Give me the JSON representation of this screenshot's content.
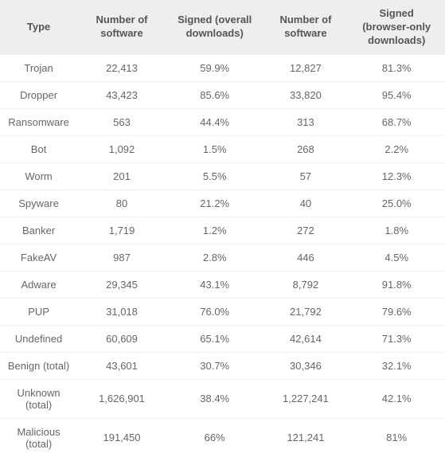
{
  "table": {
    "columns": [
      "Type",
      "Number of software",
      "Signed (overall downloads)",
      "Number of software",
      "Signed (browser-only downloads)"
    ],
    "rows": [
      [
        "Trojan",
        "22,413",
        "59.9%",
        "12,827",
        "81.3%"
      ],
      [
        "Dropper",
        "43,423",
        "85.6%",
        "33,820",
        "95.4%"
      ],
      [
        "Ransomware",
        "563",
        "44.4%",
        "313",
        "68.7%"
      ],
      [
        "Bot",
        "1,092",
        "1.5%",
        "268",
        "2.2%"
      ],
      [
        "Worm",
        "201",
        "5.5%",
        "57",
        "12.3%"
      ],
      [
        "Spyware",
        "80",
        "21.2%",
        "40",
        "25.0%"
      ],
      [
        "Banker",
        "1,719",
        "1.2%",
        "272",
        "1.8%"
      ],
      [
        "FakeAV",
        "987",
        "2.8%",
        "446",
        "4.5%"
      ],
      [
        "Adware",
        "29,345",
        "43.1%",
        "8,792",
        "91.8%"
      ],
      [
        "PUP",
        "31,018",
        "76.0%",
        "21,792",
        "79.6%"
      ],
      [
        "Undefined",
        "60,609",
        "65.1%",
        "42,614",
        "71.3%"
      ],
      [
        "Benign (total)",
        "43,601",
        "30.7%",
        "30,346",
        "32.1%"
      ],
      [
        "Unknown (total)",
        "1,626,901",
        "38.4%",
        "1,227,241",
        "42.1%"
      ],
      [
        "Malicious (total)",
        "191,450",
        "66%",
        "121,241",
        "81%"
      ]
    ],
    "header_bg": "#eeeeee",
    "row_border": "#eeeeee",
    "text_color": "#666666",
    "header_text_color": "#555555",
    "font_size": 13
  }
}
